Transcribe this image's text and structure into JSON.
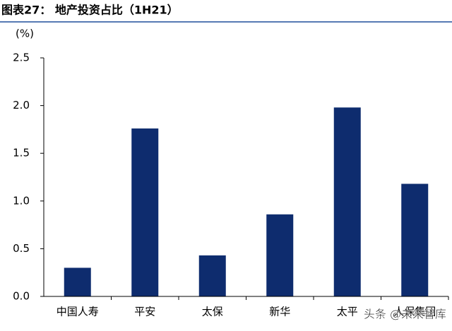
{
  "chart_data": {
    "type": "bar",
    "title": "图表27：  地产投资占比（1H21）",
    "y_label": "(%)",
    "categories": [
      "中国人寿",
      "平安",
      "太保",
      "新华",
      "太平",
      "人保集团"
    ],
    "values": [
      0.3,
      1.76,
      0.43,
      0.86,
      1.98,
      1.18
    ],
    "color": "#0e2c6e",
    "ylim": [
      0,
      2.5
    ],
    "yticks": [
      {
        "value": 0,
        "label": "0.0"
      },
      0.5,
      {
        "value": 1,
        "label": "1.0"
      },
      1.5,
      {
        "value": 2,
        "label": "2.0"
      },
      2.5
    ],
    "grid": false,
    "watermark": "头条 @未来智库"
  }
}
